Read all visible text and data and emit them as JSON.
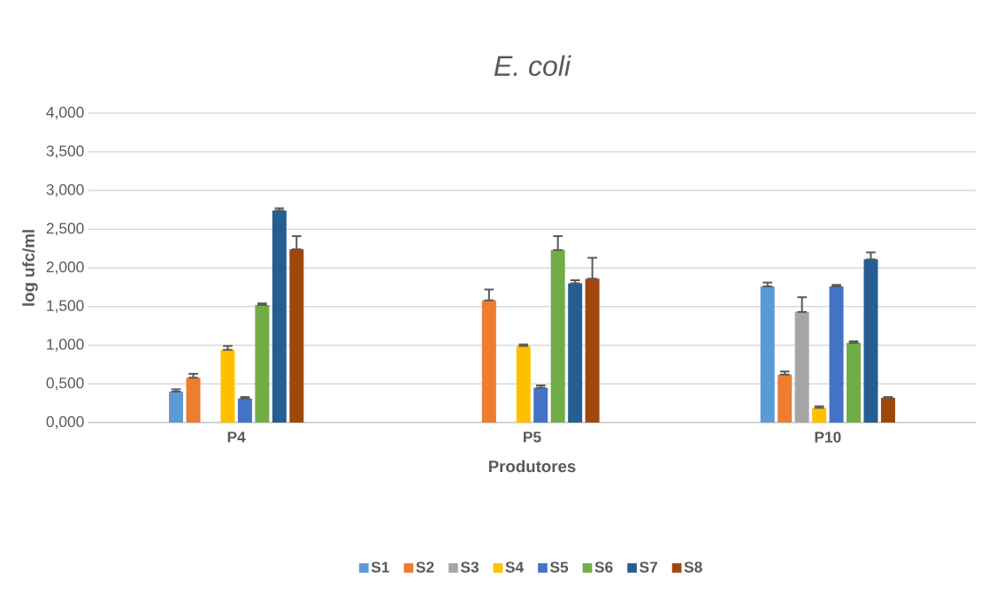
{
  "chart_data": {
    "type": "bar",
    "title": "E. coli",
    "xlabel": "Produtores",
    "ylabel": "log ufc/ml",
    "categories": [
      "P4",
      "P5",
      "P10"
    ],
    "series": [
      {
        "name": "S1",
        "color": "#5b9bd5",
        "values": [
          0.4,
          null,
          1.76
        ],
        "errors": [
          [
            0.4,
            0.43
          ],
          null,
          [
            1.76,
            1.81
          ]
        ]
      },
      {
        "name": "S2",
        "color": "#ed7d31",
        "values": [
          0.58,
          1.58,
          0.62
        ],
        "errors": [
          [
            0.58,
            0.63
          ],
          [
            1.58,
            1.72
          ],
          [
            0.62,
            0.66
          ]
        ]
      },
      {
        "name": "S3",
        "color": "#a5a5a5",
        "values": [
          null,
          null,
          1.43
        ],
        "errors": [
          null,
          null,
          [
            1.43,
            1.62
          ]
        ]
      },
      {
        "name": "S4",
        "color": "#ffc000",
        "values": [
          0.94,
          0.99,
          0.19
        ],
        "errors": [
          [
            0.94,
            0.99
          ],
          [
            0.99,
            1.01
          ],
          [
            0.19,
            0.21
          ]
        ]
      },
      {
        "name": "S5",
        "color": "#4472c4",
        "values": [
          0.31,
          0.45,
          1.76
        ],
        "errors": [
          [
            0.31,
            0.33
          ],
          [
            0.45,
            0.48
          ],
          [
            1.76,
            1.78
          ]
        ]
      },
      {
        "name": "S6",
        "color": "#70ad47",
        "values": [
          1.52,
          2.23,
          1.03
        ],
        "errors": [
          [
            1.52,
            1.54
          ],
          [
            2.23,
            2.41
          ],
          [
            1.03,
            1.05
          ]
        ]
      },
      {
        "name": "S7",
        "color": "#255e91",
        "values": [
          2.74,
          1.8,
          2.11
        ],
        "errors": [
          [
            2.74,
            2.77
          ],
          [
            1.8,
            1.84
          ],
          [
            2.11,
            2.2
          ]
        ]
      },
      {
        "name": "S8",
        "color": "#9e480e",
        "values": [
          2.24,
          1.86,
          0.32
        ],
        "errors": [
          [
            2.24,
            2.41
          ],
          [
            1.86,
            2.13
          ],
          [
            0.32,
            0.33
          ]
        ]
      }
    ],
    "ylim": [
      0,
      4
    ],
    "yticks": [
      {
        "value": 0,
        "label": "0,000"
      },
      {
        "value": 0.5,
        "label": "0,500"
      },
      {
        "value": 1,
        "label": "1,000"
      },
      {
        "value": 1.5,
        "label": "1,500"
      },
      {
        "value": 2,
        "label": "2,000"
      },
      {
        "value": 2.5,
        "label": "2,500"
      },
      {
        "value": 3,
        "label": "3,000"
      },
      {
        "value": 3.5,
        "label": "3,500"
      },
      {
        "value": 4,
        "label": "4,000"
      }
    ],
    "grid": "y",
    "legend": "bottom"
  }
}
